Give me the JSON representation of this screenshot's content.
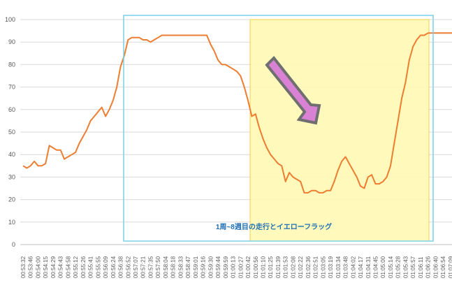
{
  "chart_data": {
    "type": "line",
    "title": "",
    "xlabel": "",
    "ylabel": "",
    "ylim": [
      0,
      100
    ],
    "yticks": [
      0,
      10,
      20,
      30,
      40,
      50,
      60,
      70,
      80,
      90,
      100
    ],
    "grid": "horizontal",
    "legend": "none",
    "x_ticks": [
      "00:53:32",
      "00:53:46",
      "00:54:00",
      "00:54:15",
      "00:54:29",
      "00:54:43",
      "00:54:58",
      "00:55:12",
      "00:55:26",
      "00:55:41",
      "00:55:55",
      "00:56:09",
      "00:56:24",
      "00:56:38",
      "00:56:52",
      "00:57:07",
      "00:57:21",
      "00:57:35",
      "00:57:50",
      "00:58:04",
      "00:58:18",
      "00:58:33",
      "00:58:47",
      "00:59:01",
      "00:59:16",
      "00:59:30",
      "00:59:44",
      "00:59:59",
      "01:00:13",
      "01:00:27",
      "01:00:42",
      "01:00:56",
      "01:01:10",
      "01:01:25",
      "01:01:39",
      "01:01:53",
      "01:02:08",
      "01:02:22",
      "01:02:36",
      "01:02:51",
      "01:03:05",
      "01:03:19",
      "01:03:34",
      "01:03:48",
      "01:04:02",
      "01:04:17",
      "01:04:31",
      "01:04:45",
      "01:05:00",
      "01:05:14",
      "01:05:28",
      "01:05:43",
      "01:05:57",
      "01:06:11",
      "01:06:26",
      "01:06:40",
      "01:06:54",
      "01:07:09"
    ],
    "series": [
      {
        "color": "#ed7d31",
        "x": [
          0,
          0.5,
          1,
          1.5,
          2,
          2.5,
          3,
          3.5,
          4,
          4.5,
          5,
          5.5,
          6,
          6.5,
          7,
          7.5,
          8,
          8.5,
          9,
          9.5,
          10,
          10.5,
          11,
          11.5,
          12,
          12.5,
          13,
          13.5,
          14,
          14.5,
          15,
          15.5,
          16,
          16.5,
          17,
          17.5,
          18,
          18.5,
          19,
          19.5,
          20,
          20.5,
          21,
          21.5,
          22,
          22.5,
          23,
          23.5,
          24,
          24.5,
          25,
          25.5,
          26,
          26.5,
          27,
          27.5,
          28,
          28.5,
          29,
          29.5,
          30,
          30.5,
          31,
          31.5,
          32,
          32.5,
          33,
          33.5,
          34,
          34.5,
          35,
          35.5,
          36,
          36.5,
          37,
          37.5,
          38,
          38.5,
          39,
          39.5,
          40,
          40.5,
          41,
          41.5,
          42,
          42.5,
          43,
          43.5,
          44,
          44.5,
          45,
          45.5,
          46,
          46.5,
          47,
          47.5,
          48,
          48.5,
          49,
          49.5,
          50,
          50.5,
          51,
          51.5,
          52,
          52.5,
          53,
          53.5,
          54,
          54.5,
          55,
          55.5,
          56,
          56.5,
          57,
          57.5
        ],
        "y": [
          35,
          34,
          35,
          37,
          35,
          35,
          36,
          44,
          43,
          42,
          42,
          38,
          39,
          40,
          41,
          45,
          48,
          51,
          55,
          57,
          59,
          61,
          57,
          60,
          64,
          70,
          79,
          84,
          91,
          92,
          92,
          92,
          91,
          91,
          90,
          91,
          92,
          93,
          93,
          93,
          93,
          93,
          93,
          93,
          93,
          93,
          93,
          93,
          93,
          93,
          89,
          86,
          82,
          80,
          80,
          79,
          78,
          77,
          75,
          70,
          64,
          57,
          58,
          52,
          47,
          43,
          40,
          38,
          36,
          35,
          28,
          32,
          30,
          29,
          28,
          23,
          23,
          24,
          24,
          23,
          23,
          24,
          24,
          28,
          33,
          37,
          39,
          36,
          33,
          30,
          26,
          25,
          30,
          31,
          27,
          27,
          28,
          30,
          35,
          45,
          55,
          65,
          72,
          82,
          88,
          91,
          93,
          93,
          94,
          94,
          94,
          94,
          94,
          94,
          94,
          94
        ]
      }
    ],
    "annotations": {
      "label": "1周~8週目の走行とイエローフラッグ"
    }
  }
}
